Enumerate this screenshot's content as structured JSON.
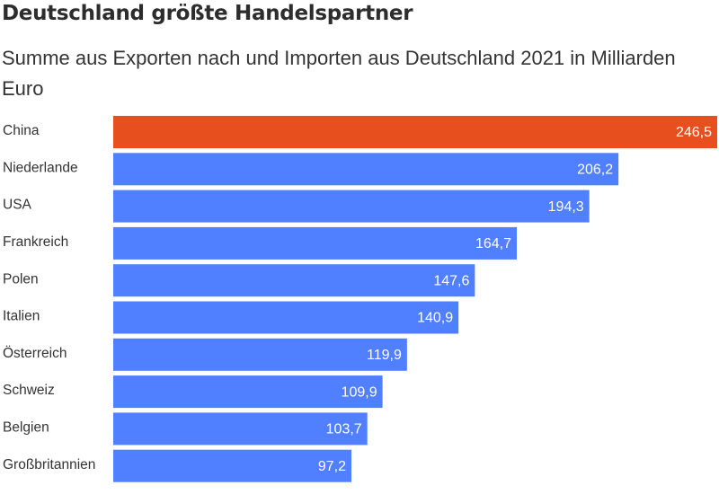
{
  "chart_data": {
    "type": "bar",
    "orientation": "horizontal",
    "title": "Deutschland größte Handelspartner",
    "subtitle": "Summe aus Exporten nach und Importen aus Deutschland 2021 in Milliarden Euro",
    "categories": [
      "China",
      "Niederlande",
      "USA",
      "Frankreich",
      "Polen",
      "Italien",
      "Österreich",
      "Schweiz",
      "Belgien",
      "Großbritannien"
    ],
    "values": [
      246.5,
      206.2,
      194.3,
      164.7,
      147.6,
      140.9,
      119.9,
      109.9,
      103.7,
      97.2
    ],
    "value_labels": [
      "246,5",
      "206,2",
      "194,3",
      "164,7",
      "147,6",
      "140,9",
      "119,9",
      "109,9",
      "103,7",
      "97,2"
    ],
    "highlight_index": 0,
    "xlim": [
      0,
      246.5
    ],
    "grid": false,
    "legend": "none",
    "colors": {
      "highlight": "#e84f1f",
      "default": "#5080ff",
      "value_text": "#ffffff"
    }
  }
}
